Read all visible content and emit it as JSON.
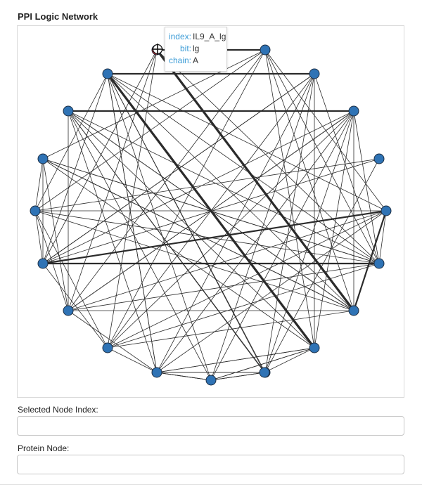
{
  "page": {
    "title": "PPI Logic Network"
  },
  "tooltip": {
    "rows": [
      {
        "key": "index:",
        "value": "IL9_A_lg"
      },
      {
        "key": "bit:",
        "value": "lg"
      },
      {
        "key": "chain:",
        "value": "A"
      }
    ]
  },
  "fields": {
    "selected_node_label": "Selected Node Index:",
    "selected_node_value": "",
    "protein_node_label": "Protein Node:",
    "protein_node_value": ""
  },
  "colors": {
    "node_fill": "#2f73b5",
    "node_stroke": "#1d2f44",
    "selected_node_fill": "#d62728",
    "edge": "#2b2b2b"
  },
  "network": {
    "node_count": 22,
    "selected_node": 0,
    "edges": [
      [
        0,
        10,
        1
      ],
      [
        0,
        11,
        1
      ],
      [
        0,
        12,
        1
      ],
      [
        0,
        13,
        3
      ],
      [
        0,
        14,
        1
      ],
      [
        1,
        0,
        2
      ],
      [
        1,
        8,
        1
      ],
      [
        1,
        6,
        1
      ],
      [
        1,
        9,
        1
      ],
      [
        1,
        11,
        1
      ],
      [
        1,
        12,
        1
      ],
      [
        1,
        13,
        1
      ],
      [
        1,
        14,
        1
      ],
      [
        1,
        15,
        1
      ],
      [
        2,
        3,
        2
      ],
      [
        2,
        15,
        3
      ],
      [
        2,
        11,
        1
      ],
      [
        2,
        16,
        1
      ],
      [
        2,
        17,
        1
      ],
      [
        2,
        13,
        1
      ],
      [
        2,
        10,
        1
      ],
      [
        2,
        9,
        1
      ],
      [
        2,
        19,
        1
      ],
      [
        2,
        20,
        1
      ],
      [
        2,
        21,
        1
      ],
      [
        3,
        10,
        1
      ],
      [
        3,
        11,
        1
      ],
      [
        3,
        14,
        1
      ],
      [
        3,
        15,
        1
      ],
      [
        3,
        16,
        1
      ],
      [
        3,
        17,
        1
      ],
      [
        3,
        20,
        1
      ],
      [
        4,
        5,
        2
      ],
      [
        4,
        19,
        1
      ],
      [
        4,
        20,
        1
      ],
      [
        4,
        13,
        1
      ],
      [
        4,
        15,
        1
      ],
      [
        4,
        16,
        1
      ],
      [
        4,
        17,
        1
      ],
      [
        4,
        12,
        1
      ],
      [
        5,
        14,
        1
      ],
      [
        5,
        15,
        1
      ],
      [
        5,
        16,
        1
      ],
      [
        5,
        17,
        1
      ],
      [
        5,
        18,
        1
      ],
      [
        5,
        12,
        1
      ],
      [
        6,
        13,
        1
      ],
      [
        6,
        15,
        1
      ],
      [
        6,
        11,
        1
      ],
      [
        6,
        12,
        1
      ],
      [
        7,
        17,
        1
      ],
      [
        8,
        9,
        1
      ],
      [
        8,
        10,
        1
      ],
      [
        8,
        11,
        1
      ],
      [
        8,
        12,
        1
      ],
      [
        8,
        13,
        1
      ],
      [
        8,
        14,
        1
      ],
      [
        8,
        2,
        1
      ],
      [
        8,
        6,
        1
      ],
      [
        8,
        7,
        1
      ],
      [
        9,
        10,
        2
      ],
      [
        9,
        13,
        2
      ],
      [
        9,
        11,
        1
      ],
      [
        9,
        12,
        1
      ],
      [
        9,
        14,
        1
      ],
      [
        9,
        16,
        1
      ],
      [
        10,
        11,
        2
      ],
      [
        10,
        14,
        1
      ],
      [
        10,
        3,
        1
      ],
      [
        10,
        5,
        1
      ],
      [
        10,
        6,
        1
      ],
      [
        10,
        7,
        1
      ],
      [
        11,
        14,
        1
      ],
      [
        11,
        4,
        1
      ],
      [
        11,
        5,
        1
      ],
      [
        11,
        6,
        1
      ],
      [
        11,
        12,
        1
      ],
      [
        12,
        13,
        1
      ],
      [
        12,
        5,
        1
      ],
      [
        13,
        14,
        1
      ],
      [
        13,
        4,
        1
      ],
      [
        13,
        5,
        1
      ],
      [
        13,
        6,
        1
      ],
      [
        15,
        16,
        1
      ],
      [
        15,
        18,
        1
      ],
      [
        15,
        19,
        1
      ],
      [
        15,
        20,
        1
      ],
      [
        15,
        21,
        1
      ],
      [
        16,
        19,
        1
      ],
      [
        16,
        20,
        1
      ],
      [
        16,
        21,
        1
      ],
      [
        17,
        19,
        1
      ],
      [
        17,
        20,
        1
      ],
      [
        17,
        21,
        1
      ],
      [
        18,
        19,
        1
      ],
      [
        18,
        20,
        1
      ],
      [
        18,
        21,
        1
      ],
      [
        19,
        20,
        1
      ],
      [
        20,
        21,
        1
      ],
      [
        21,
        14,
        1
      ],
      [
        21,
        12,
        1
      ]
    ]
  }
}
